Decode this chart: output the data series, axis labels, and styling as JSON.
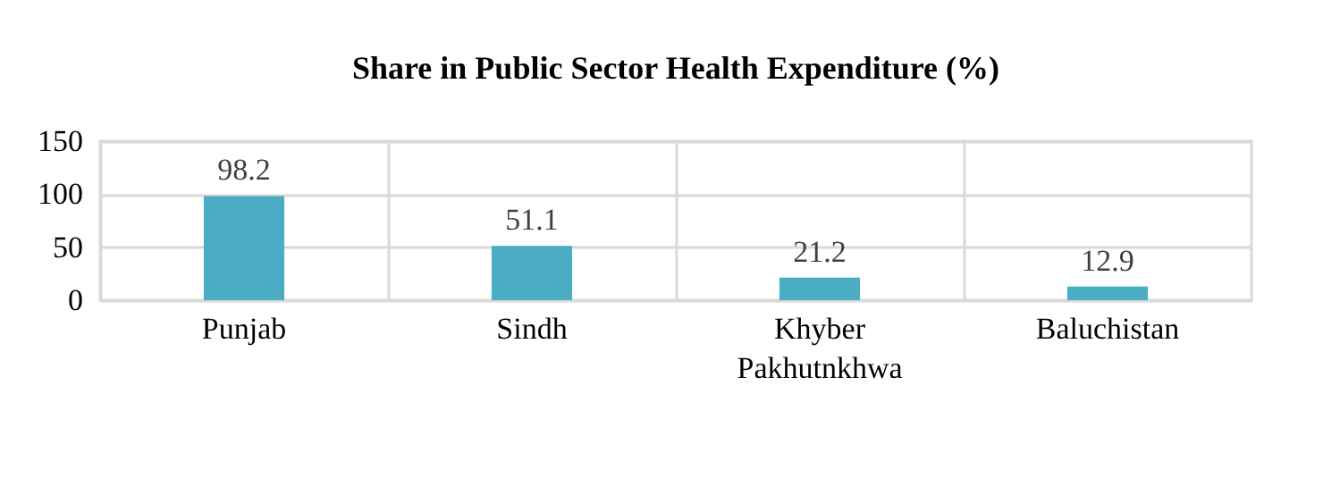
{
  "chart_data": {
    "type": "bar",
    "title": "Share in Public Sector Health Expenditure (%)",
    "categories": [
      "Punjab",
      "Sindh",
      "Khyber Pakhutnkhwa",
      "Baluchistan"
    ],
    "values": [
      98.2,
      51.1,
      21.2,
      12.9
    ],
    "color": "#4bacc6",
    "ylim": [
      0,
      150
    ],
    "yticks": [
      0,
      50,
      100,
      150
    ],
    "grid": true,
    "data_labels": true
  }
}
